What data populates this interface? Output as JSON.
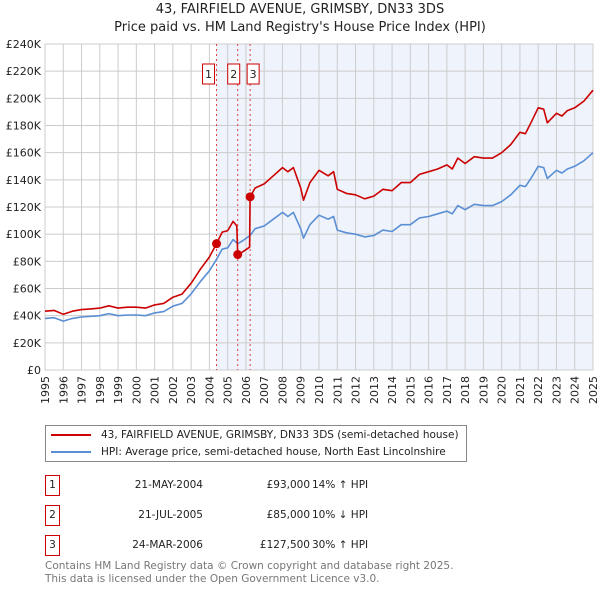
{
  "chart_data": {
    "type": "line",
    "title": "43, FAIRFIELD AVENUE, GRIMSBY, DN33 3DS",
    "subtitle": "Price paid vs. HM Land Registry's House Price Index (HPI)",
    "xlabel": "",
    "ylabel": "",
    "xlim": [
      1995,
      2025
    ],
    "ylim": [
      0,
      240000
    ],
    "grid": true,
    "x_ticks": [
      "1995",
      "1996",
      "1997",
      "1998",
      "1999",
      "2000",
      "2001",
      "2002",
      "2003",
      "2004",
      "2005",
      "2006",
      "2007",
      "2008",
      "2009",
      "2010",
      "2011",
      "2012",
      "2013",
      "2014",
      "2015",
      "2016",
      "2017",
      "2018",
      "2019",
      "2020",
      "2021",
      "2022",
      "2023",
      "2024",
      "2025"
    ],
    "y_ticks": [
      {
        "v": 0,
        "label": "£0"
      },
      {
        "v": 20000,
        "label": "£20K"
      },
      {
        "v": 40000,
        "label": "£40K"
      },
      {
        "v": 60000,
        "label": "£60K"
      },
      {
        "v": 80000,
        "label": "£80K"
      },
      {
        "v": 100000,
        "label": "£100K"
      },
      {
        "v": 120000,
        "label": "£120K"
      },
      {
        "v": 140000,
        "label": "£140K"
      },
      {
        "v": 160000,
        "label": "£160K"
      },
      {
        "v": 180000,
        "label": "£180K"
      },
      {
        "v": 200000,
        "label": "£200K"
      },
      {
        "v": 220000,
        "label": "£220K"
      },
      {
        "v": 240000,
        "label": "£240K"
      }
    ],
    "series": [
      {
        "name": "43, FAIRFIELD AVENUE, GRIMSBY, DN33 3DS (semi-detached house)",
        "color": "#cc0000",
        "x": [
          1995,
          1995.5,
          1996,
          1996.5,
          1997,
          1997.5,
          1998,
          1998.5,
          1999,
          1999.5,
          2000,
          2000.5,
          2001,
          2001.5,
          2002,
          2002.5,
          2003,
          2003.5,
          2004,
          2004.39,
          2004.7,
          2005,
          2005.3,
          2005.5,
          2005.55,
          2005.8,
          2006.2,
          2006.23,
          2006.5,
          2007,
          2007.5,
          2008,
          2008.3,
          2008.6,
          2009,
          2009.15,
          2009.5,
          2010,
          2010.5,
          2010.8,
          2011,
          2011.5,
          2012,
          2012.5,
          2013,
          2013.5,
          2014,
          2014.5,
          2015,
          2015.5,
          2016,
          2016.5,
          2017,
          2017.3,
          2017.6,
          2018,
          2018.5,
          2019,
          2019.5,
          2020,
          2020.5,
          2021,
          2021.3,
          2021.6,
          2022,
          2022.3,
          2022.5,
          2023,
          2023.3,
          2023.6,
          2024,
          2024.5,
          2025
        ],
        "values": [
          43300,
          43900,
          41000,
          43300,
          44500,
          45000,
          45600,
          47300,
          45600,
          46200,
          46200,
          45600,
          47900,
          49000,
          53600,
          55900,
          63800,
          74100,
          83200,
          93000,
          101500,
          102600,
          109400,
          106000,
          85000,
          86800,
          90400,
          127500,
          134000,
          137000,
          143000,
          149000,
          146000,
          149000,
          134000,
          125000,
          138000,
          147000,
          143000,
          146000,
          133000,
          130000,
          129000,
          126000,
          128000,
          133000,
          132000,
          138000,
          138000,
          144000,
          146000,
          148000,
          151000,
          148000,
          156000,
          152000,
          157000,
          156000,
          156000,
          160000,
          166000,
          175000,
          174000,
          182000,
          193000,
          192000,
          182000,
          189000,
          187000,
          191000,
          193000,
          198000,
          206000
        ]
      },
      {
        "name": "HPI: Average price, semi-detached house, North East Lincolnshire",
        "color": "#5b8fd4",
        "x": [
          1995,
          1995.5,
          1996,
          1996.5,
          1997,
          1997.5,
          1998,
          1998.5,
          1999,
          1999.5,
          2000,
          2000.5,
          2001,
          2001.5,
          2002,
          2002.5,
          2003,
          2003.5,
          2004,
          2004.39,
          2004.7,
          2005,
          2005.3,
          2005.55,
          2005.8,
          2006.23,
          2006.5,
          2007,
          2007.5,
          2008,
          2008.3,
          2008.6,
          2009,
          2009.15,
          2009.5,
          2010,
          2010.5,
          2010.8,
          2011,
          2011.5,
          2012,
          2012.5,
          2013,
          2013.5,
          2014,
          2014.5,
          2015,
          2015.5,
          2016,
          2016.5,
          2017,
          2017.3,
          2017.6,
          2018,
          2018.5,
          2019,
          2019.5,
          2020,
          2020.5,
          2021,
          2021.3,
          2021.6,
          2022,
          2022.3,
          2022.5,
          2023,
          2023.3,
          2023.6,
          2024,
          2024.5,
          2025
        ],
        "values": [
          38000,
          38500,
          36000,
          38000,
          39000,
          39500,
          40000,
          41500,
          40000,
          40500,
          40500,
          40000,
          42000,
          43000,
          47000,
          49000,
          56000,
          65000,
          73000,
          81500,
          89000,
          90000,
          96000,
          93000,
          95000,
          99000,
          104000,
          106000,
          111000,
          116000,
          113000,
          116000,
          104000,
          97000,
          107000,
          114000,
          111000,
          113000,
          103000,
          101000,
          100000,
          98000,
          99000,
          103000,
          102000,
          107000,
          107000,
          112000,
          113000,
          115000,
          117000,
          115000,
          121000,
          118000,
          122000,
          121000,
          121000,
          124000,
          129000,
          136000,
          135000,
          141000,
          150000,
          149000,
          141000,
          147000,
          145000,
          148000,
          150000,
          154000,
          160000
        ]
      }
    ],
    "sales": [
      {
        "num": "1",
        "x": 2004.39,
        "date": "21-MAY-2004",
        "price": "£93,000",
        "value": 93000,
        "hpi": "14% ↑ HPI"
      },
      {
        "num": "2",
        "x": 2005.55,
        "date": "21-JUL-2005",
        "price": "£85,000",
        "value": 85000,
        "hpi": "10% ↓ HPI"
      },
      {
        "num": "3",
        "x": 2006.23,
        "date": "24-MAR-2006",
        "price": "£127,500",
        "value": 127500,
        "hpi": "30% ↑ HPI"
      }
    ],
    "legend_position": "below"
  },
  "legend": {
    "property": "43, FAIRFIELD AVENUE, GRIMSBY, DN33 3DS (semi-detached house)",
    "hpi": "HPI: Average price, semi-detached house, North East Lincolnshire"
  },
  "footer": {
    "line1": "Contains HM Land Registry data © Crown copyright and database right 2025.",
    "line2": "This data is licensed under the Open Government Licence v3.0."
  },
  "colors": {
    "property": "#cc0000",
    "hpi": "#5b8fd4",
    "shade": "#eef3fc",
    "grid": "#cccccc"
  }
}
